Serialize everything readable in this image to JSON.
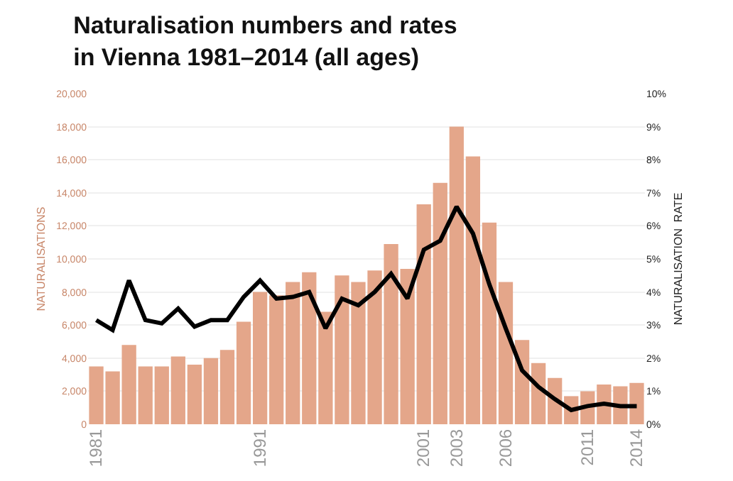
{
  "chart_data": {
    "type": "bar",
    "title": "Naturalisation numbers and rates in Vienna 1981–2014 (all ages)",
    "ylabel": "NATURALISATIONS",
    "y2label": "NATURALISATION  RATE",
    "x": [
      1981,
      1982,
      1983,
      1984,
      1985,
      1986,
      1987,
      1988,
      1989,
      1990,
      1991,
      1992,
      1993,
      1994,
      1995,
      1996,
      1997,
      1998,
      1999,
      2000,
      2001,
      2002,
      2003,
      2004,
      2005,
      2006,
      2007,
      2008,
      2009,
      2010,
      2011,
      2012,
      2013,
      2014
    ],
    "series": [
      {
        "color": "#e4a68a",
        "values": [
          3500,
          3200,
          4800,
          3500,
          3500,
          4100,
          3600,
          4000,
          4500,
          6200,
          8000,
          7800,
          8600,
          9200,
          6800,
          9000,
          8600,
          9300,
          10900,
          9400,
          13300,
          14600,
          18000,
          16200,
          12200,
          8600,
          5100,
          3700,
          2800,
          1700,
          2000,
          2400,
          2300,
          2500
        ]
      },
      {
        "type": "line",
        "axis": "y2",
        "color": "#000000",
        "values": [
          3.15,
          2.85,
          4.35,
          3.15,
          3.05,
          3.5,
          2.95,
          3.15,
          3.15,
          3.85,
          4.35,
          3.8,
          3.85,
          4.0,
          2.9,
          3.8,
          3.6,
          4.0,
          4.55,
          3.8,
          5.28,
          5.55,
          6.58,
          5.77,
          4.23,
          2.9,
          1.63,
          1.13,
          0.76,
          0.43,
          0.55,
          0.62,
          0.55,
          0.55
        ]
      }
    ],
    "xlim": [
      1980.5,
      2014.5
    ],
    "xticks": [
      1981,
      1991,
      2001,
      2003,
      2006,
      2011,
      2014
    ],
    "ylim": [
      0,
      20000
    ],
    "yticks": [
      {
        "value": 0,
        "label": "0"
      },
      {
        "value": 2000,
        "label": "2,000"
      },
      {
        "value": 4000,
        "label": "4,000"
      },
      {
        "value": 6000,
        "label": "6,000"
      },
      {
        "value": 8000,
        "label": "8,000"
      },
      {
        "value": 10000,
        "label": "10,000"
      },
      {
        "value": 12000,
        "label": "12,000"
      },
      {
        "value": 14000,
        "label": "14,000"
      },
      {
        "value": 16000,
        "label": "16,000"
      },
      {
        "value": 18000,
        "label": "18,000"
      },
      {
        "value": 20000,
        "label": "20,000"
      }
    ],
    "y2lim": [
      0,
      10
    ],
    "y2ticks": [
      {
        "value": 0,
        "label": "0%"
      },
      {
        "value": 1,
        "label": "1%"
      },
      {
        "value": 2,
        "label": "2%"
      },
      {
        "value": 3,
        "label": "3%"
      },
      {
        "value": 4,
        "label": "4%"
      },
      {
        "value": 5,
        "label": "5%"
      },
      {
        "value": 6,
        "label": "6%"
      },
      {
        "value": 7,
        "label": "7%"
      },
      {
        "value": 8,
        "label": "8%"
      },
      {
        "value": 9,
        "label": "9%"
      },
      {
        "value": 10,
        "label": "10%"
      }
    ],
    "grid": "y",
    "legend": false,
    "marker": "none",
    "line_style": "solid"
  }
}
